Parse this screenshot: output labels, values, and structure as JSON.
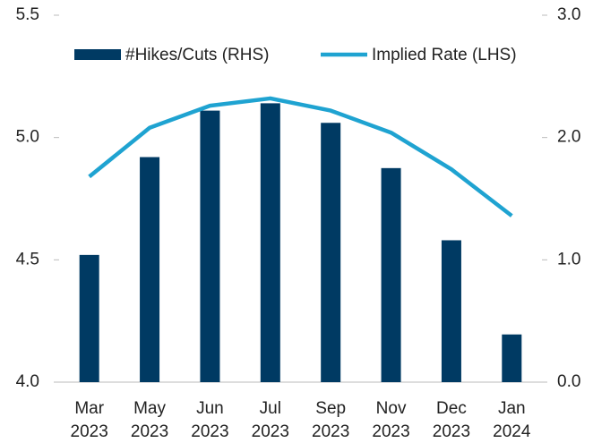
{
  "chart_data": {
    "type": "bar-line",
    "categories": [
      "Mar 2023",
      "May 2023",
      "Jun 2023",
      "Jul 2023",
      "Sep 2023",
      "Nov 2023",
      "Dec 2023",
      "Jan 2024"
    ],
    "series": [
      {
        "name": "#Hikes/Cuts (RHS)",
        "type": "bar",
        "axis": "y2",
        "color": "#003a63",
        "values": [
          1.04,
          1.84,
          2.22,
          2.28,
          2.12,
          1.75,
          1.16,
          0.39
        ]
      },
      {
        "name": "Implied Rate (LHS)",
        "type": "line",
        "axis": "y",
        "color": "#1fa3d1",
        "values": [
          4.84,
          5.04,
          5.13,
          5.16,
          5.11,
          5.02,
          4.87,
          4.68
        ]
      }
    ],
    "ylim": [
      4.0,
      5.5
    ],
    "yticks": [
      {
        "value": 4,
        "label": "4.0"
      },
      4.5,
      {
        "value": 5,
        "label": "5.0"
      },
      5.5
    ],
    "y2lim": [
      0,
      3
    ],
    "y2ticks": [
      {
        "value": 0,
        "label": "0.0"
      },
      {
        "value": 1,
        "label": "1.0"
      },
      {
        "value": 2,
        "label": "2.0"
      },
      {
        "value": 3,
        "label": "3.0"
      }
    ],
    "legend": "top"
  }
}
